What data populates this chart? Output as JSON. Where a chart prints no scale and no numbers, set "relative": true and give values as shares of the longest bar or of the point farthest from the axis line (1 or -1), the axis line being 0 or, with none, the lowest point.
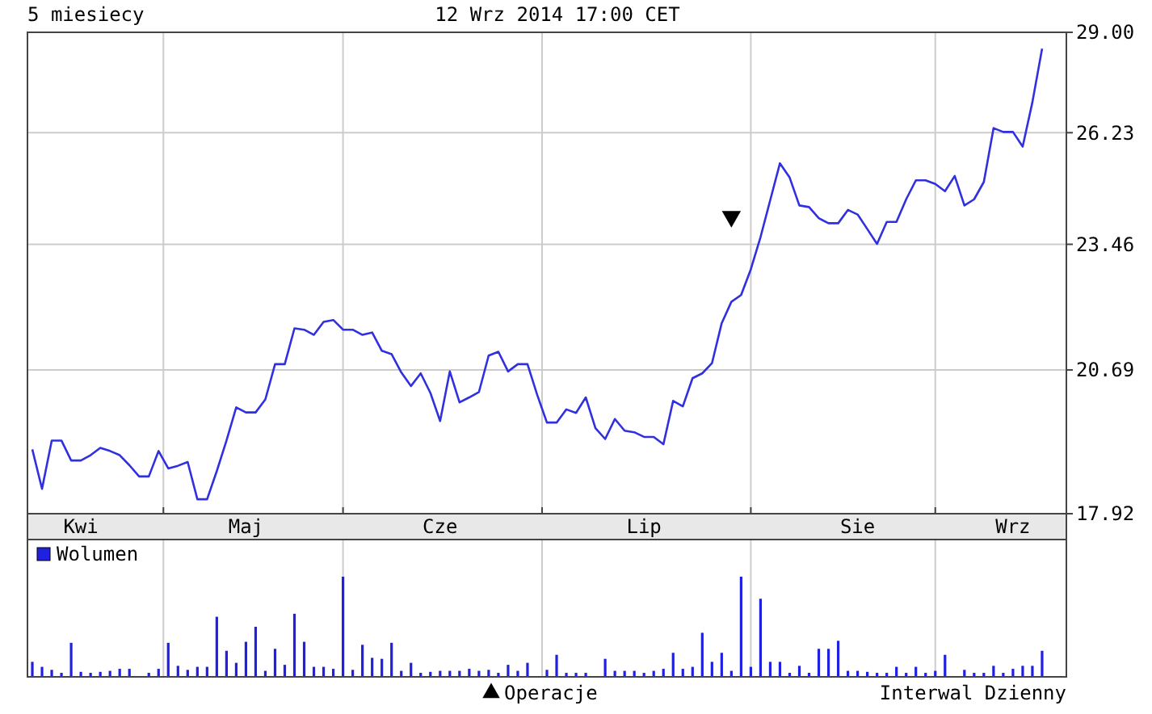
{
  "chart_data": [
    {
      "type": "line",
      "title": "5 miesiecy",
      "subtitle": "12 Wrz 2014 17:00 CET",
      "annotations": [
        "Interwal Dzienny"
      ],
      "log": true,
      "grid": true,
      "legend": "bottom",
      "categories": [
        null,
        null,
        null,
        null,
        null,
        "Kwi",
        null,
        null,
        null,
        null,
        null,
        null,
        null,
        null,
        null,
        null,
        null,
        null,
        null,
        null,
        null,
        null,
        "Maj",
        null,
        null,
        null,
        null,
        null,
        null,
        null,
        null,
        null,
        null,
        null,
        null,
        null,
        null,
        null,
        null,
        null,
        null,
        null,
        "Cze",
        null,
        null,
        null,
        null,
        null,
        null,
        null,
        null,
        null,
        null,
        null,
        null,
        null,
        null,
        null,
        null,
        null,
        null,
        null,
        null,
        "Lip",
        null,
        null,
        null,
        null,
        null,
        null,
        null,
        null,
        null,
        null,
        null,
        null,
        null,
        null,
        null,
        null,
        null,
        null,
        null,
        null,
        null,
        "Sie",
        null,
        null,
        null,
        null,
        null,
        null,
        null,
        null,
        null,
        null,
        null,
        null,
        null,
        null,
        null,
        "Wrz",
        null,
        null,
        null,
        null,
        null
      ],
      "ylim": [
        17.92,
        29.0
      ],
      "yticks": [
        {
          "value": 17.92,
          "label": "17.92"
        },
        {
          "value": 20.69,
          "label": "20.69"
        },
        {
          "value": 23.46,
          "label": "23.46"
        },
        {
          "value": 26.23,
          "label": "26.23"
        },
        {
          "value": 29.0,
          "label": "29.00"
        }
      ],
      "series": [
        {
          "color": "#3030e0",
          "values": [
            19.11,
            18.37,
            19.28,
            19.28,
            18.9,
            18.9,
            19.0,
            19.14,
            19.08,
            19.0,
            18.81,
            18.6,
            18.6,
            19.08,
            18.75,
            18.8,
            18.87,
            18.18,
            18.18,
            18.7,
            19.28,
            19.93,
            19.83,
            19.83,
            20.09,
            20.81,
            20.81,
            21.57,
            21.54,
            21.43,
            21.71,
            21.75,
            21.54,
            21.54,
            21.43,
            21.48,
            21.09,
            21.02,
            20.64,
            20.36,
            20.62,
            20.22,
            19.66,
            20.66,
            20.03,
            20.13,
            20.24,
            20.99,
            21.07,
            20.66,
            20.81,
            20.81,
            20.18,
            19.63,
            19.63,
            19.89,
            19.82,
            20.13,
            19.52,
            19.31,
            19.7,
            19.47,
            19.44,
            19.35,
            19.35,
            19.21,
            20.06,
            19.95,
            20.52,
            20.62,
            20.83,
            21.68,
            22.15,
            22.3,
            22.88,
            23.63,
            24.52,
            25.44,
            25.08,
            24.39,
            24.35,
            24.08,
            23.96,
            23.96,
            24.28,
            24.17,
            23.82,
            23.47,
            23.99,
            23.99,
            24.54,
            25.01,
            25.01,
            24.92,
            24.74,
            25.12,
            24.39,
            24.54,
            24.97,
            26.35,
            26.25,
            26.25,
            25.87,
            27.04,
            28.53,
            null,
            null
          ]
        },
        {
          "type": "scatter",
          "name": "Operacje",
          "color": "#000000",
          "marker": "triangle",
          "values": [
            null,
            null,
            null,
            null,
            null,
            null,
            null,
            null,
            null,
            null,
            null,
            null,
            null,
            null,
            null,
            null,
            null,
            null,
            null,
            null,
            null,
            null,
            null,
            null,
            null,
            null,
            null,
            null,
            null,
            null,
            null,
            null,
            null,
            null,
            null,
            null,
            null,
            null,
            null,
            null,
            null,
            null,
            null,
            null,
            null,
            null,
            null,
            null,
            null,
            null,
            null,
            null,
            null,
            null,
            null,
            null,
            null,
            null,
            null,
            null,
            null,
            null,
            null,
            null,
            null,
            null,
            null,
            null,
            null,
            null,
            null,
            null,
            24.12,
            null,
            null,
            null,
            null,
            null,
            null,
            null,
            null,
            null,
            null,
            null,
            null,
            null,
            null,
            null,
            null,
            null,
            null,
            null,
            null,
            null,
            null,
            null,
            null,
            null,
            null,
            null,
            null,
            null,
            null,
            null,
            null,
            null,
            null
          ]
        }
      ]
    },
    {
      "type": "bar",
      "relative": true,
      "tick_labels": false,
      "grid": "x",
      "legend": "top left",
      "categories": [
        null,
        null,
        null,
        null,
        null,
        null,
        null,
        null,
        null,
        null,
        null,
        null,
        null,
        null,
        null,
        null,
        null,
        null,
        null,
        null,
        null,
        null,
        null,
        null,
        null,
        null,
        null,
        null,
        null,
        null,
        null,
        null,
        null,
        null,
        null,
        null,
        null,
        null,
        null,
        null,
        null,
        null,
        null,
        null,
        null,
        null,
        null,
        null,
        null,
        null,
        null,
        null,
        null,
        null,
        null,
        null,
        null,
        null,
        null,
        null,
        null,
        null,
        null,
        null,
        null,
        null,
        null,
        null,
        null,
        null,
        null,
        null,
        null,
        null,
        null,
        null,
        null,
        null,
        null,
        null,
        null,
        null,
        null,
        null,
        null,
        null,
        null,
        null,
        null,
        null,
        null,
        null,
        null,
        null,
        null,
        null,
        null,
        null,
        null,
        null,
        null,
        null,
        null,
        null,
        null,
        null,
        null
      ],
      "series": [
        {
          "name": "Wolumen",
          "color": "#2020e0",
          "values": [
            0.15,
            0.1,
            0.07,
            0.04,
            0.34,
            0.05,
            0.04,
            0.05,
            0.06,
            0.08,
            0.08,
            null,
            0.04,
            0.08,
            0.34,
            0.11,
            0.07,
            0.1,
            0.1,
            0.6,
            0.26,
            0.14,
            0.35,
            0.5,
            0.06,
            0.28,
            0.12,
            0.63,
            0.35,
            0.1,
            0.1,
            0.08,
            1.0,
            0.07,
            0.32,
            0.19,
            0.18,
            0.34,
            0.06,
            0.14,
            0.04,
            0.05,
            0.06,
            0.06,
            0.06,
            0.08,
            0.06,
            0.07,
            0.04,
            0.12,
            0.06,
            0.14,
            null,
            0.07,
            0.22,
            0.04,
            0.04,
            0.04,
            null,
            0.18,
            0.06,
            0.06,
            0.06,
            0.04,
            0.06,
            0.08,
            0.24,
            0.08,
            0.1,
            0.44,
            0.15,
            0.24,
            0.06,
            1.0,
            0.1,
            0.78,
            0.15,
            0.15,
            0.04,
            0.11,
            0.04,
            0.28,
            0.28,
            0.36,
            0.06,
            0.06,
            0.05,
            0.04,
            0.04,
            0.1,
            0.04,
            0.1,
            0.04,
            0.06,
            0.22,
            null,
            0.07,
            0.04,
            0.04,
            0.11,
            0.04,
            0.08,
            0.11,
            0.11,
            0.26,
            null,
            null
          ]
        }
      ]
    }
  ]
}
